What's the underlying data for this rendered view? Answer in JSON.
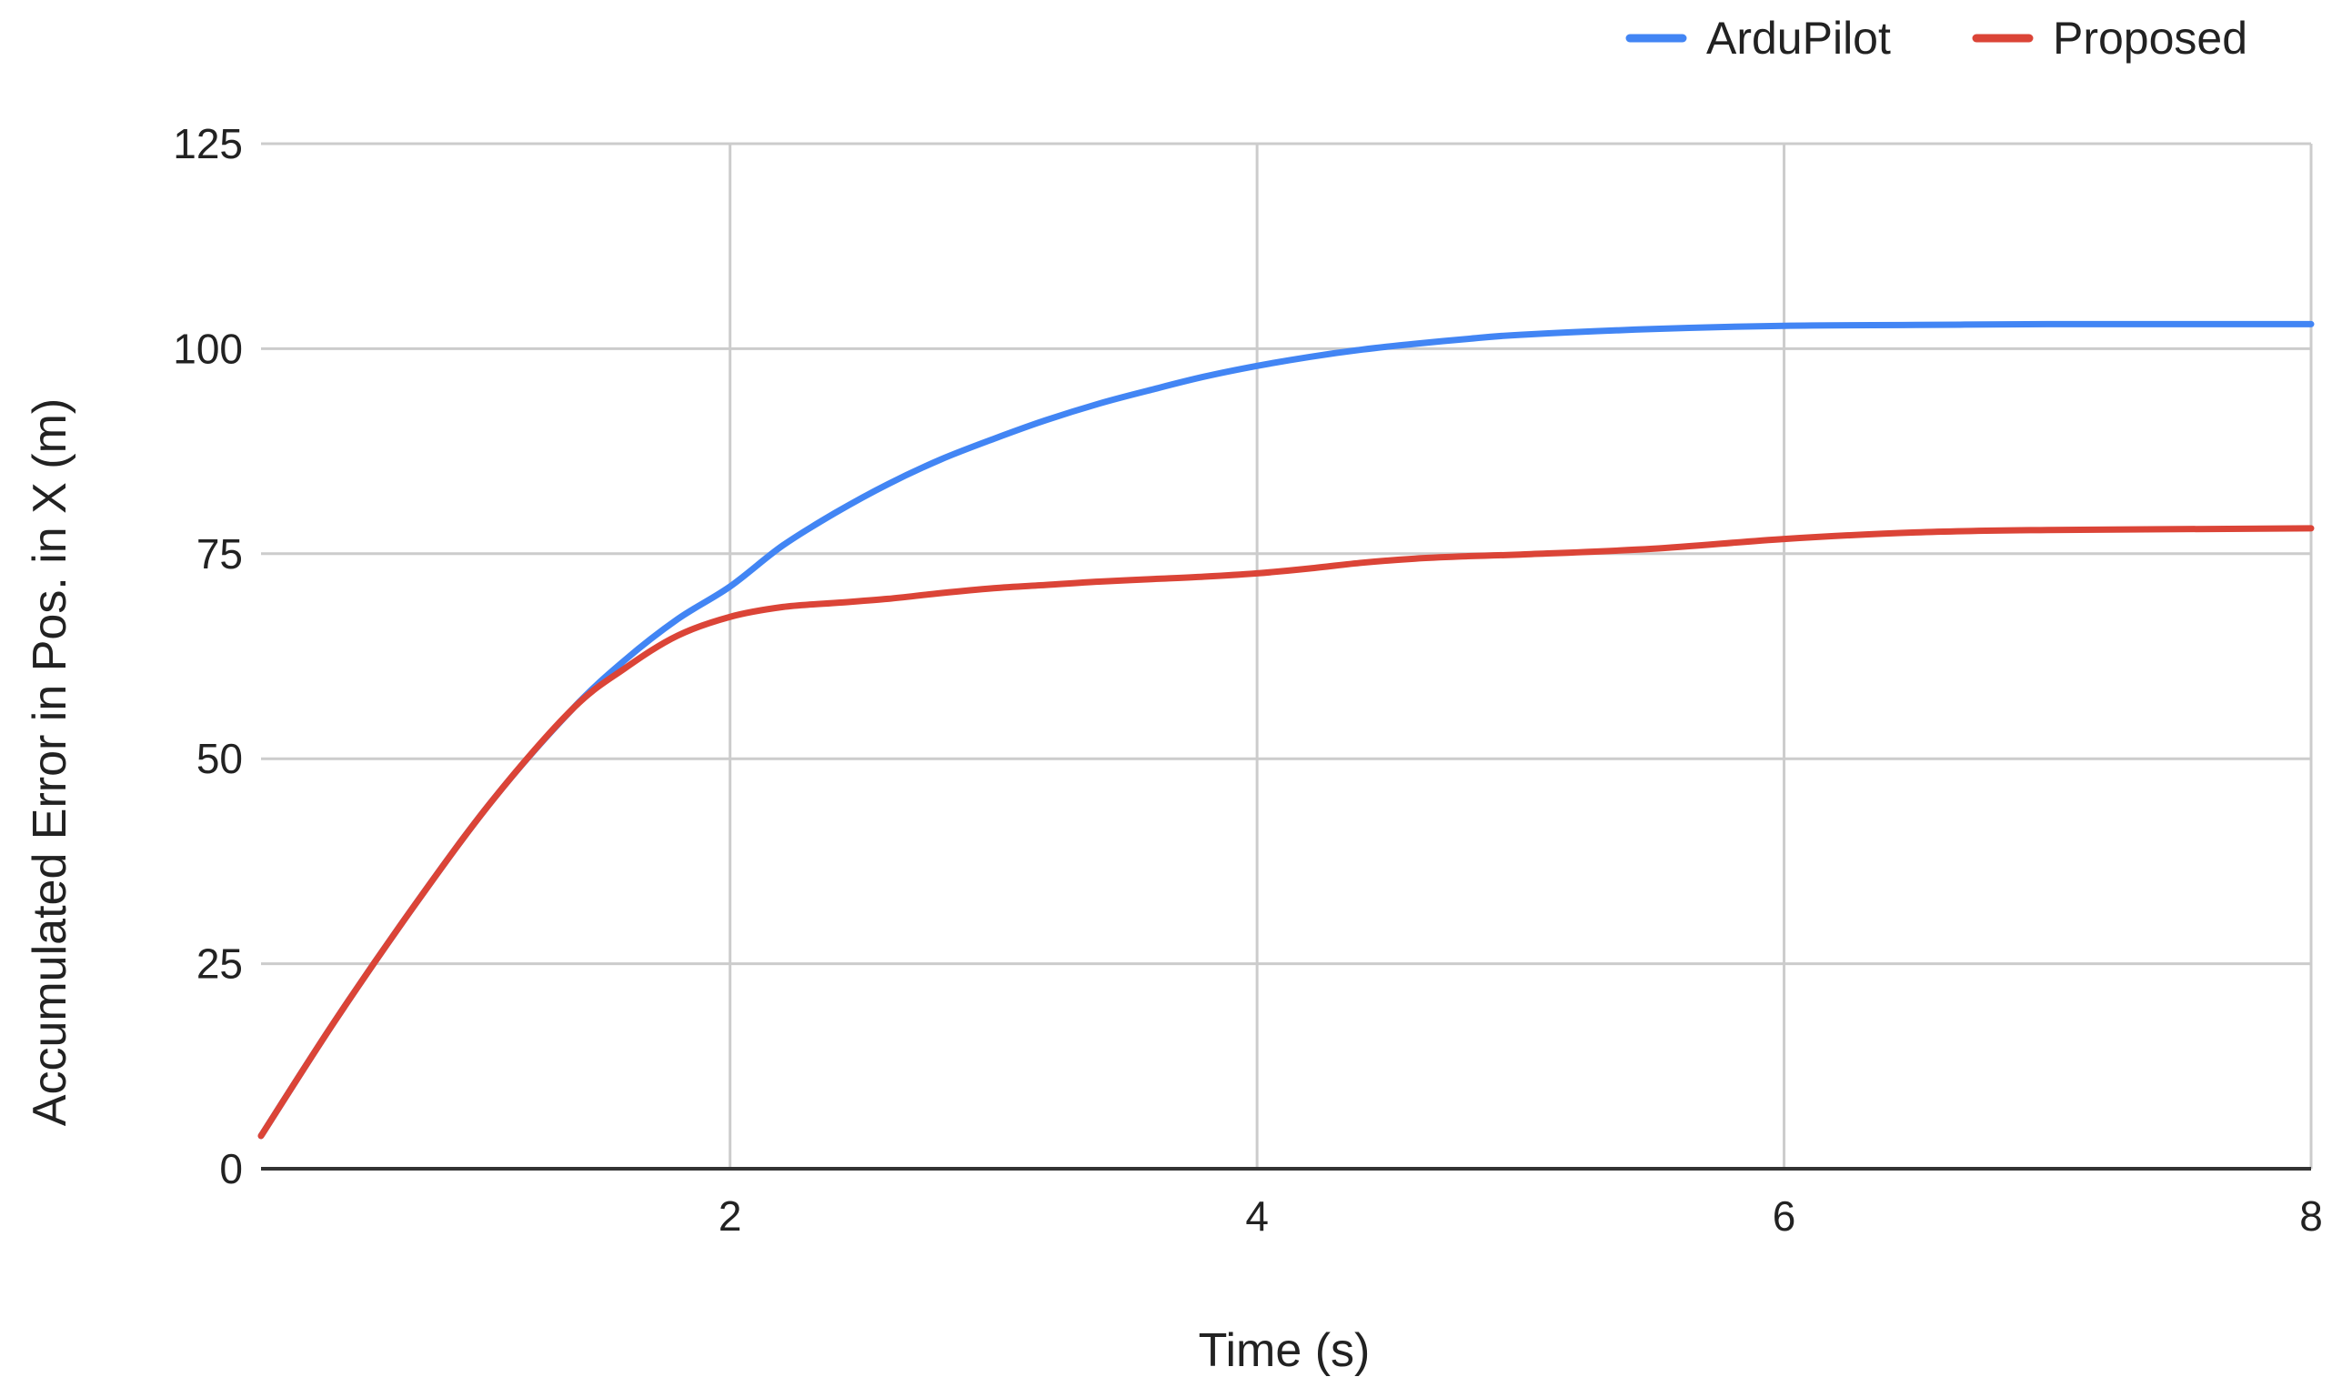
{
  "chart_data": {
    "type": "line",
    "title": "",
    "xlabel": "Time (s)",
    "ylabel": "Accumulated Error in Pos. in X (m)",
    "xlim": [
      0.22,
      8
    ],
    "ylim": [
      0,
      125
    ],
    "xticks": [
      2,
      4,
      6,
      8
    ],
    "yticks": [
      0,
      25,
      50,
      75,
      100,
      125
    ],
    "grid": true,
    "legend": "top-right",
    "series": [
      {
        "name": "ArduPilot",
        "color": "#4285f4",
        "x": [
          0.22,
          0.5,
          0.8,
          1.1,
          1.4,
          1.6,
          1.8,
          2.0,
          2.2,
          2.4,
          2.6,
          2.8,
          3.0,
          3.2,
          3.4,
          3.6,
          3.8,
          4.0,
          4.2,
          4.4,
          4.6,
          4.8,
          5.0,
          5.5,
          6.0,
          6.5,
          7.0,
          7.5,
          8.0
        ],
        "y": [
          4,
          18,
          32,
          45,
          56,
          62,
          67,
          71,
          76,
          80,
          83.5,
          86.5,
          89,
          91.3,
          93.3,
          95,
          96.6,
          97.9,
          99,
          99.9,
          100.6,
          101.2,
          101.7,
          102.4,
          102.8,
          102.9,
          103,
          103,
          103
        ]
      },
      {
        "name": "Proposed",
        "color": "#db4437",
        "x": [
          0.22,
          0.5,
          0.8,
          1.1,
          1.4,
          1.6,
          1.8,
          2.0,
          2.2,
          2.4,
          2.6,
          2.8,
          3.0,
          3.2,
          3.4,
          3.6,
          3.8,
          4.0,
          4.2,
          4.4,
          4.6,
          4.8,
          5.0,
          5.5,
          6.0,
          6.5,
          7.0,
          7.5,
          8.0
        ],
        "y": [
          4,
          18,
          32,
          45,
          56,
          61,
          65,
          67.3,
          68.5,
          69,
          69.5,
          70.2,
          70.8,
          71.2,
          71.6,
          71.9,
          72.2,
          72.6,
          73.2,
          73.9,
          74.4,
          74.7,
          74.9,
          75.6,
          76.8,
          77.6,
          77.9,
          78,
          78.1
        ]
      }
    ]
  }
}
